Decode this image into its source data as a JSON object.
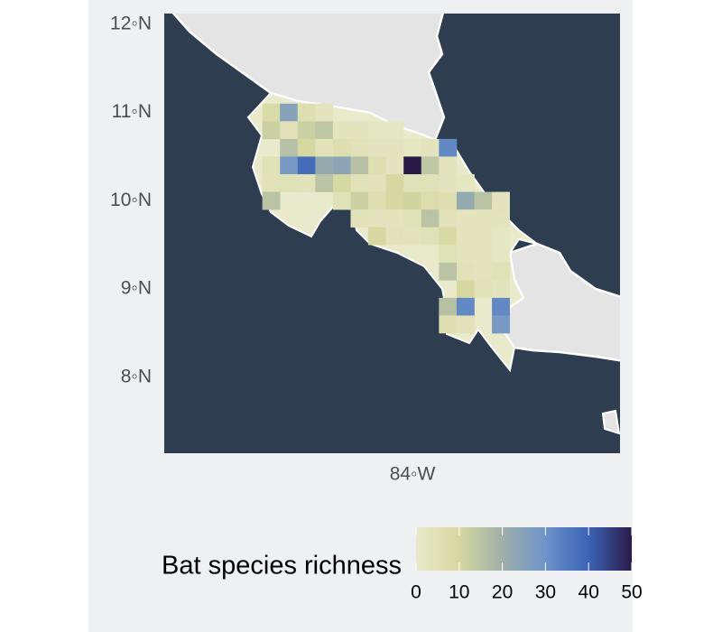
{
  "map": {
    "type": "raster-map",
    "xlim": [
      -86.81,
      -81.65
    ],
    "ylim": [
      7.14,
      12.12
    ],
    "xticks": [
      {
        "value": -84,
        "label": "84◦W"
      }
    ],
    "yticks": [
      {
        "value": 12,
        "label": "12◦N"
      },
      {
        "value": 11,
        "label": "11◦N"
      },
      {
        "value": 10,
        "label": "10◦N"
      },
      {
        "value": 9,
        "label": "9◦N"
      },
      {
        "value": 8,
        "label": "8◦N"
      }
    ],
    "colorbar": {
      "title": "Bat species richness",
      "range": [
        0,
        50
      ],
      "ticks": [
        0,
        10,
        20,
        30,
        40,
        50
      ],
      "colors": [
        "#e9e9cb",
        "#d5d8a0",
        "#9fb0a9",
        "#6d93c9",
        "#3c63b6",
        "#2a1a48"
      ]
    },
    "cells": [
      {
        "lon": -85.6,
        "lat": 11.0,
        "value": 8
      },
      {
        "lon": -85.4,
        "lat": 11.0,
        "value": 25
      },
      {
        "lon": -85.2,
        "lat": 11.0,
        "value": 6
      },
      {
        "lon": -85.0,
        "lat": 11.0,
        "value": 3
      },
      {
        "lon": -85.6,
        "lat": 10.8,
        "value": 12
      },
      {
        "lon": -85.4,
        "lat": 10.8,
        "value": 4
      },
      {
        "lon": -85.2,
        "lat": 10.8,
        "value": 12
      },
      {
        "lon": -85.0,
        "lat": 10.8,
        "value": 14
      },
      {
        "lon": -84.8,
        "lat": 10.8,
        "value": 3
      },
      {
        "lon": -84.6,
        "lat": 10.8,
        "value": 3
      },
      {
        "lon": -84.4,
        "lat": 10.8,
        "value": 2
      },
      {
        "lon": -84.2,
        "lat": 10.8,
        "value": 2
      },
      {
        "lon": -85.4,
        "lat": 10.6,
        "value": 16
      },
      {
        "lon": -85.2,
        "lat": 10.6,
        "value": 10
      },
      {
        "lon": -85.0,
        "lat": 10.6,
        "value": 4
      },
      {
        "lon": -84.8,
        "lat": 10.6,
        "value": 6
      },
      {
        "lon": -84.6,
        "lat": 10.6,
        "value": 4
      },
      {
        "lon": -84.4,
        "lat": 10.6,
        "value": 3
      },
      {
        "lon": -84.2,
        "lat": 10.6,
        "value": 3
      },
      {
        "lon": -84.0,
        "lat": 10.6,
        "value": 2
      },
      {
        "lon": -83.8,
        "lat": 10.6,
        "value": 3
      },
      {
        "lon": -83.6,
        "lat": 10.6,
        "value": 32
      },
      {
        "lon": -85.6,
        "lat": 10.4,
        "value": 5
      },
      {
        "lon": -85.4,
        "lat": 10.4,
        "value": 28
      },
      {
        "lon": -85.2,
        "lat": 10.4,
        "value": 38
      },
      {
        "lon": -85.0,
        "lat": 10.4,
        "value": 22
      },
      {
        "lon": -84.8,
        "lat": 10.4,
        "value": 24
      },
      {
        "lon": -84.6,
        "lat": 10.4,
        "value": 16
      },
      {
        "lon": -84.4,
        "lat": 10.4,
        "value": 6
      },
      {
        "lon": -84.2,
        "lat": 10.4,
        "value": 3
      },
      {
        "lon": -84.0,
        "lat": 10.4,
        "value": 50
      },
      {
        "lon": -83.8,
        "lat": 10.4,
        "value": 14
      },
      {
        "lon": -83.6,
        "lat": 10.4,
        "value": 3
      },
      {
        "lon": -85.6,
        "lat": 10.2,
        "value": 4
      },
      {
        "lon": -85.4,
        "lat": 10.2,
        "value": 5
      },
      {
        "lon": -85.2,
        "lat": 10.2,
        "value": 4
      },
      {
        "lon": -85.0,
        "lat": 10.2,
        "value": 15
      },
      {
        "lon": -84.8,
        "lat": 10.2,
        "value": 10
      },
      {
        "lon": -84.6,
        "lat": 10.2,
        "value": 5
      },
      {
        "lon": -84.4,
        "lat": 10.2,
        "value": 4
      },
      {
        "lon": -84.2,
        "lat": 10.2,
        "value": 10
      },
      {
        "lon": -84.0,
        "lat": 10.2,
        "value": 5
      },
      {
        "lon": -83.8,
        "lat": 10.2,
        "value": 5
      },
      {
        "lon": -83.6,
        "lat": 10.2,
        "value": 3
      },
      {
        "lon": -83.4,
        "lat": 10.2,
        "value": 2
      },
      {
        "lon": -85.6,
        "lat": 10.0,
        "value": 15
      },
      {
        "lon": -84.8,
        "lat": 10.0,
        "value": 5
      },
      {
        "lon": -84.6,
        "lat": 10.0,
        "value": 12
      },
      {
        "lon": -84.4,
        "lat": 10.0,
        "value": 6
      },
      {
        "lon": -84.2,
        "lat": 10.0,
        "value": 10
      },
      {
        "lon": -84.0,
        "lat": 10.0,
        "value": 11
      },
      {
        "lon": -83.8,
        "lat": 10.0,
        "value": 7
      },
      {
        "lon": -83.6,
        "lat": 10.0,
        "value": 6
      },
      {
        "lon": -83.4,
        "lat": 10.0,
        "value": 22
      },
      {
        "lon": -83.2,
        "lat": 10.0,
        "value": 15
      },
      {
        "lon": -83.0,
        "lat": 10.0,
        "value": 3
      },
      {
        "lon": -84.6,
        "lat": 9.8,
        "value": 4
      },
      {
        "lon": -84.4,
        "lat": 9.8,
        "value": 3
      },
      {
        "lon": -84.2,
        "lat": 9.8,
        "value": 3
      },
      {
        "lon": -84.0,
        "lat": 9.8,
        "value": 5
      },
      {
        "lon": -83.8,
        "lat": 9.8,
        "value": 15
      },
      {
        "lon": -83.6,
        "lat": 9.8,
        "value": 4
      },
      {
        "lon": -83.4,
        "lat": 9.8,
        "value": 3
      },
      {
        "lon": -83.2,
        "lat": 9.8,
        "value": 3
      },
      {
        "lon": -83.0,
        "lat": 9.8,
        "value": 3
      },
      {
        "lon": -84.4,
        "lat": 9.6,
        "value": 10
      },
      {
        "lon": -84.2,
        "lat": 9.6,
        "value": 4
      },
      {
        "lon": -84.0,
        "lat": 9.6,
        "value": 3
      },
      {
        "lon": -83.8,
        "lat": 9.6,
        "value": 5
      },
      {
        "lon": -83.6,
        "lat": 9.6,
        "value": 9
      },
      {
        "lon": -83.4,
        "lat": 9.6,
        "value": 3
      },
      {
        "lon": -83.2,
        "lat": 9.6,
        "value": 3
      },
      {
        "lon": -83.0,
        "lat": 9.6,
        "value": 2
      },
      {
        "lon": -83.6,
        "lat": 9.4,
        "value": 5
      },
      {
        "lon": -83.4,
        "lat": 9.4,
        "value": 3
      },
      {
        "lon": -83.2,
        "lat": 9.4,
        "value": 3
      },
      {
        "lon": -83.0,
        "lat": 9.4,
        "value": 2
      },
      {
        "lon": -83.6,
        "lat": 9.2,
        "value": 15
      },
      {
        "lon": -83.4,
        "lat": 9.2,
        "value": 4
      },
      {
        "lon": -83.2,
        "lat": 9.2,
        "value": 3
      },
      {
        "lon": -83.0,
        "lat": 9.2,
        "value": 5
      },
      {
        "lon": -83.4,
        "lat": 9.0,
        "value": 10
      },
      {
        "lon": -83.2,
        "lat": 9.0,
        "value": 4
      },
      {
        "lon": -83.0,
        "lat": 9.0,
        "value": 3
      },
      {
        "lon": -83.6,
        "lat": 8.8,
        "value": 16
      },
      {
        "lon": -83.4,
        "lat": 8.8,
        "value": 32
      },
      {
        "lon": -83.0,
        "lat": 8.8,
        "value": 32
      },
      {
        "lon": -83.6,
        "lat": 8.6,
        "value": 6
      },
      {
        "lon": -83.4,
        "lat": 8.6,
        "value": 4
      },
      {
        "lon": -83.0,
        "lat": 8.6,
        "value": 28
      }
    ]
  }
}
